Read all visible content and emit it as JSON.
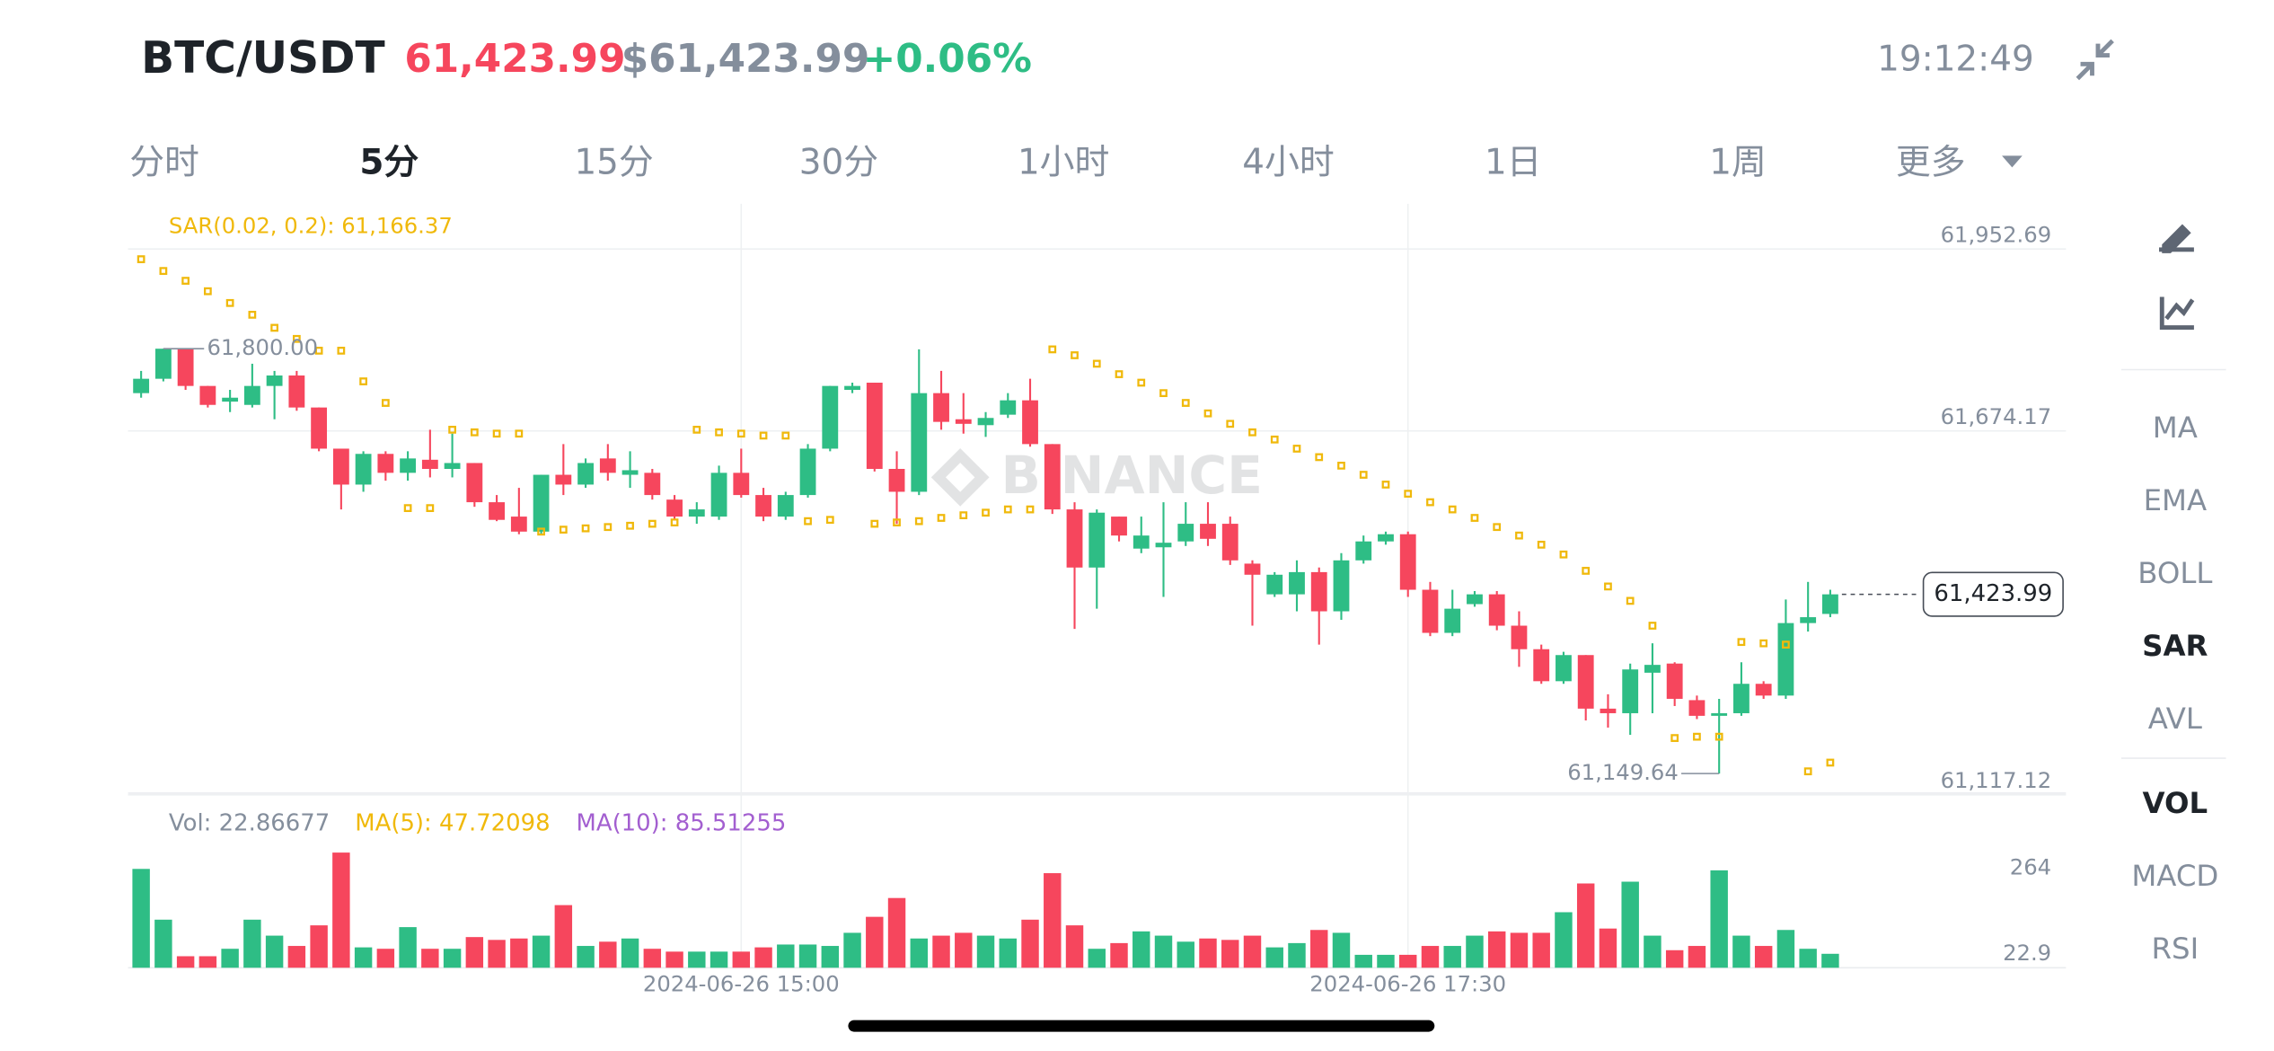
{
  "header": {
    "pair": "BTC/USDT",
    "price": "61,423.99",
    "price_usd": "$61,423.99",
    "change": "+0.06%",
    "time": "19:12:49"
  },
  "tabs": {
    "items": [
      "分时",
      "5分",
      "15分",
      "30分",
      "1小时",
      "4小时",
      "1日",
      "1周",
      "更多"
    ],
    "active": 1
  },
  "indicators": {
    "main": [
      "MA",
      "EMA",
      "BOLL",
      "SAR",
      "AVL"
    ],
    "main_active": 3,
    "sub": [
      "VOL",
      "MACD",
      "RSI"
    ],
    "sub_active": 0
  },
  "chart_data": [
    {
      "type": "candlestick",
      "watermark": "BINANCE",
      "sar_label": "SAR(0.02, 0.2): 61,166.37",
      "up_color": "#2ebd85",
      "down_color": "#f6465d",
      "sar_color": "#f0b90b",
      "open": [
        61732,
        61754,
        61800,
        61743,
        61719,
        61714,
        61743,
        61759,
        61710,
        61647,
        61592,
        61639,
        61610,
        61630,
        61616,
        61625,
        61565,
        61543,
        61520,
        61607,
        61592,
        61632,
        61607,
        61610,
        61569,
        61543,
        61543,
        61610,
        61576,
        61543,
        61576,
        61647,
        61737,
        61748,
        61616,
        61581,
        61732,
        61692,
        61683,
        61699,
        61721,
        61654,
        61554,
        61465,
        61543,
        61494,
        61496,
        61505,
        61532,
        61532,
        61471,
        61424,
        61424,
        61458,
        61398,
        61476,
        61505,
        61516,
        61431,
        61365,
        61409,
        61424,
        61376,
        61340,
        61291,
        61331,
        61249,
        61242,
        61304,
        61318,
        61262,
        61238,
        61242,
        61287,
        61269,
        61380,
        61394
      ],
      "high": [
        61766,
        61800,
        61800,
        61743,
        61737,
        61777,
        61766,
        61766,
        61710,
        61647,
        61643,
        61643,
        61643,
        61676,
        61670,
        61625,
        61576,
        61587,
        61607,
        61654,
        61632,
        61654,
        61643,
        61616,
        61576,
        61565,
        61621,
        61647,
        61587,
        61581,
        61654,
        61743,
        61748,
        61748,
        61643,
        61799,
        61766,
        61732,
        61703,
        61732,
        61754,
        61654,
        61565,
        61554,
        61543,
        61543,
        61565,
        61565,
        61565,
        61543,
        61476,
        61458,
        61476,
        61465,
        61487,
        61514,
        61520,
        61520,
        61443,
        61431,
        61429,
        61429,
        61398,
        61347,
        61336,
        61331,
        61271,
        61318,
        61349,
        61320,
        61269,
        61264,
        61320,
        61291,
        61416,
        61443,
        61431
      ],
      "low": [
        61725,
        61750,
        61737,
        61710,
        61703,
        61710,
        61692,
        61705,
        61643,
        61554,
        61581,
        61598,
        61598,
        61603,
        61603,
        61558,
        61536,
        61516,
        61516,
        61576,
        61587,
        61598,
        61587,
        61569,
        61538,
        61532,
        61538,
        61572,
        61536,
        61538,
        61572,
        61643,
        61732,
        61612,
        61532,
        61576,
        61676,
        61670,
        61665,
        61694,
        61650,
        61547,
        61371,
        61402,
        61505,
        61487,
        61420,
        61498,
        61498,
        61469,
        61376,
        61420,
        61398,
        61347,
        61385,
        61471,
        61500,
        61420,
        61360,
        61360,
        61405,
        61369,
        61313,
        61287,
        61287,
        61231,
        61220,
        61209,
        61242,
        61253,
        61233,
        61149.64,
        61238,
        61264,
        61264,
        61367,
        61389
      ],
      "close": [
        61754,
        61800,
        61743,
        61714,
        61725,
        61743,
        61759,
        61710,
        61647,
        61592,
        61639,
        61610,
        61632,
        61616,
        61625,
        61565,
        61538,
        61520,
        61607,
        61592,
        61625,
        61610,
        61614,
        61576,
        61543,
        61554,
        61610,
        61576,
        61543,
        61576,
        61647,
        61743,
        61743,
        61616,
        61581,
        61732,
        61688,
        61685,
        61694,
        61721,
        61654,
        61554,
        61465,
        61549,
        61514,
        61514,
        61503,
        61532,
        61509,
        61476,
        61454,
        61454,
        61458,
        61398,
        61476,
        61505,
        61516,
        61431,
        61365,
        61402,
        61424,
        61376,
        61340,
        61291,
        61331,
        61249,
        61242,
        61309,
        61316,
        61264,
        61238,
        61242,
        61287,
        61269,
        61380,
        61389,
        61423.99
      ],
      "sar": [
        61937,
        61919,
        61904,
        61888,
        61870,
        61852,
        61832,
        61815,
        61797,
        61797,
        61750,
        61717,
        61556,
        61556,
        61676,
        61672,
        61670,
        61670,
        61520,
        61523,
        61525,
        61527,
        61529,
        61532,
        61534,
        61676,
        61672,
        61670,
        61667,
        61667,
        61536,
        61538,
        null,
        61532,
        61534,
        61536,
        61541,
        61545,
        61549,
        61554,
        61554,
        61799,
        61790,
        61777,
        61761,
        61748,
        61732,
        61717,
        61701,
        61685,
        61672,
        61661,
        61647,
        61634,
        61621,
        61607,
        61592,
        61578,
        61565,
        61554,
        61541,
        61527,
        61514,
        61500,
        61485,
        61460,
        61436,
        61414,
        61376,
        61204,
        61206,
        61206,
        61351,
        61349,
        61347,
        61153,
        61166.37
      ],
      "annotations": [
        "61,800.00",
        "61,149.64"
      ],
      "last_label": "61,423.99",
      "ylim": [
        61113,
        62013
      ],
      "yticks": [
        {
          "value": 61952.69,
          "label": "61,952.69"
        },
        {
          "value": 61674.17,
          "label": "61,674.17"
        },
        {
          "value": 61117.12,
          "label": "61,117.12"
        }
      ],
      "xticks": [
        {
          "value": 27,
          "label": "2024-06-26 15:00"
        },
        {
          "value": 57,
          "label": "2024-06-26 17:30"
        }
      ]
    },
    {
      "type": "bar",
      "legend": [
        "Vol: 22.86677",
        "MA(5): 47.72098",
        "MA(10): 85.51255"
      ],
      "legend_colors": [
        "#848e9c",
        "#f0b90b",
        "#a35fd0"
      ],
      "values": [
        262,
        119,
        16,
        16,
        37,
        119,
        74,
        45,
        103,
        308,
        41,
        37,
        98,
        37,
        37,
        70,
        62,
        66,
        74,
        160,
        45,
        57,
        66,
        37,
        29,
        29,
        29,
        29,
        41,
        49,
        49,
        45,
        82,
        127,
        180,
        66,
        74,
        82,
        74,
        66,
        119,
        250,
        103,
        37,
        53,
        86,
        74,
        57,
        66,
        62,
        74,
        41,
        53,
        90,
        82,
        20,
        20,
        20,
        45,
        45,
        74,
        86,
        82,
        82,
        140,
        221,
        94,
        226,
        74,
        33,
        45,
        258,
        74,
        45,
        90,
        37,
        22.86677
      ],
      "ylim": [
        0,
        330
      ],
      "yticks": [
        264,
        22.9
      ]
    }
  ]
}
